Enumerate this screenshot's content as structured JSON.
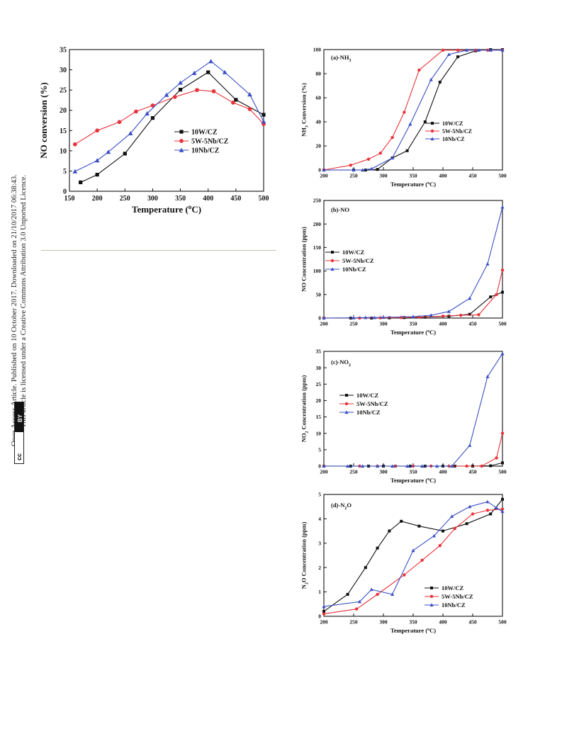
{
  "sidebar": {
    "line1": "Open Access Article. Published on 10 October 2017. Downloaded on 21/10/2017 06:38:43.",
    "line2": "This article is licensed under a Creative Commons Attribution 3.0 Unported Licence.",
    "cc_label": "BY",
    "cc_symbol": "cc"
  },
  "colors": {
    "10W/CZ": "#111111",
    "5W-5Nb/CZ": "#e8333a",
    "10Nb/CZ": "#3a4fc4"
  },
  "chart_data": [
    {
      "id": "no_conversion",
      "type": "line",
      "title": "",
      "xlabel": "Temperature (°C)",
      "ylabel": "NO conversion (%)",
      "xlim": [
        150,
        500
      ],
      "ylim": [
        0,
        35
      ],
      "xticks": [
        150,
        200,
        250,
        300,
        350,
        400,
        450,
        500
      ],
      "yticks": [
        0,
        5,
        10,
        15,
        20,
        25,
        30,
        35
      ],
      "legend_position": "center-right",
      "series": [
        {
          "name": "10W/CZ",
          "marker": "square",
          "x": [
            170,
            200,
            250,
            300,
            350,
            400,
            450,
            500
          ],
          "y": [
            2.2,
            4.1,
            9.3,
            18.1,
            25.1,
            29.4,
            22.6,
            18.9
          ]
        },
        {
          "name": "5W-5Nb/CZ",
          "marker": "circle",
          "x": [
            160,
            200,
            240,
            270,
            300,
            340,
            380,
            410,
            445,
            475,
            500
          ],
          "y": [
            11.6,
            15.0,
            17.1,
            19.7,
            21.2,
            23.3,
            25.0,
            24.7,
            21.9,
            20.3,
            16.6
          ]
        },
        {
          "name": "10Nb/CZ",
          "marker": "triangle",
          "x": [
            160,
            200,
            220,
            260,
            290,
            325,
            350,
            375,
            405,
            430,
            475,
            500
          ],
          "y": [
            4.9,
            7.6,
            9.7,
            14.3,
            19.2,
            23.8,
            26.8,
            29.2,
            32.1,
            29.4,
            23.9,
            17.2
          ]
        }
      ]
    },
    {
      "id": "nh3",
      "type": "line",
      "title": "(a)-NH3",
      "xlabel": "Temperature (°C)",
      "ylabel": "NH3 Conversion (%)",
      "xlim": [
        200,
        500
      ],
      "ylim": [
        0,
        100
      ],
      "xticks": [
        200,
        250,
        300,
        350,
        400,
        450,
        500
      ],
      "yticks": [
        0,
        20,
        40,
        60,
        80,
        100
      ],
      "legend_position": "center-right",
      "series": [
        {
          "name": "10W/CZ",
          "marker": "square",
          "x": [
            200,
            250,
            270,
            290,
            315,
            340,
            370,
            395,
            425,
            455,
            480,
            500
          ],
          "y": [
            0,
            0,
            0,
            0.5,
            10,
            16,
            40,
            73,
            94,
            99,
            100,
            100
          ]
        },
        {
          "name": "5W-5Nb/CZ",
          "marker": "circle",
          "x": [
            200,
            245,
            275,
            295,
            315,
            335,
            360,
            400,
            425,
            455,
            475,
            500
          ],
          "y": [
            0,
            4,
            9,
            14,
            27,
            48,
            83,
            99.5,
            99.5,
            99.5,
            99.5,
            99.5
          ]
        },
        {
          "name": "10Nb/CZ",
          "marker": "triangle",
          "x": [
            200,
            250,
            265,
            280,
            315,
            345,
            380,
            410,
            440,
            460,
            480,
            500
          ],
          "y": [
            0,
            0,
            0,
            1,
            10,
            38,
            75,
            96,
            99.5,
            99.5,
            99.5,
            99.5
          ]
        }
      ]
    },
    {
      "id": "no",
      "type": "line",
      "title": "(b)-NO",
      "xlabel": "Temperature (°C)",
      "ylabel": "NO Concentration (ppm)",
      "xlim": [
        200,
        500
      ],
      "ylim": [
        0,
        250
      ],
      "xticks": [
        200,
        250,
        300,
        350,
        400,
        450,
        500
      ],
      "yticks": [
        0,
        50,
        100,
        150,
        200,
        250
      ],
      "legend_position": "center-left",
      "series": [
        {
          "name": "10W/CZ",
          "marker": "square",
          "x": [
            200,
            245,
            280,
            310,
            335,
            370,
            410,
            445,
            480,
            500
          ],
          "y": [
            0,
            0,
            0,
            0.5,
            1,
            2,
            4,
            8,
            45,
            55
          ]
        },
        {
          "name": "5W-5Nb/CZ",
          "marker": "circle",
          "x": [
            200,
            260,
            295,
            330,
            360,
            400,
            430,
            460,
            490,
            500
          ],
          "y": [
            0,
            0,
            0.5,
            1,
            2,
            4,
            6,
            7,
            50,
            102
          ]
        },
        {
          "name": "10Nb/CZ",
          "marker": "triangle",
          "x": [
            200,
            250,
            270,
            285,
            300,
            350,
            380,
            410,
            445,
            475,
            500
          ],
          "y": [
            0,
            0.5,
            1,
            1,
            1.5,
            3,
            6,
            14,
            42,
            115,
            236
          ]
        }
      ]
    },
    {
      "id": "no2",
      "type": "line",
      "title": "(c)-NO2",
      "xlabel": "Temperature (°C)",
      "ylabel": "NO2 Concentration (ppm)",
      "xlim": [
        200,
        500
      ],
      "ylim": [
        0,
        35
      ],
      "xticks": [
        200,
        250,
        300,
        350,
        400,
        450,
        500
      ],
      "yticks": [
        0,
        5,
        10,
        15,
        20,
        25,
        30,
        35
      ],
      "legend_position": "center-left",
      "series": [
        {
          "name": "10W/CZ",
          "marker": "square",
          "x": [
            200,
            245,
            275,
            300,
            320,
            345,
            370,
            400,
            420,
            450,
            480,
            500
          ],
          "y": [
            0,
            0,
            0,
            0,
            0,
            0,
            0,
            0,
            0,
            0,
            0.1,
            1
          ]
        },
        {
          "name": "5W-5Nb/CZ",
          "marker": "circle",
          "x": [
            200,
            260,
            290,
            320,
            350,
            380,
            410,
            440,
            465,
            490,
            500
          ],
          "y": [
            0,
            0,
            0,
            0,
            0,
            0,
            0,
            0,
            0,
            2.5,
            10
          ]
        },
        {
          "name": "10Nb/CZ",
          "marker": "triangle",
          "x": [
            200,
            240,
            265,
            290,
            315,
            340,
            365,
            390,
            415,
            445,
            475,
            500
          ],
          "y": [
            0,
            0,
            0,
            0,
            0,
            0,
            0,
            0,
            0,
            6.3,
            27.3,
            34.3
          ]
        }
      ]
    },
    {
      "id": "n2o",
      "type": "line",
      "title": "(d)-N2O",
      "xlabel": "Temperature (°C)",
      "ylabel": "N2O Concentration (ppm)",
      "xlim": [
        200,
        500
      ],
      "ylim": [
        0,
        5
      ],
      "xticks": [
        200,
        250,
        300,
        350,
        400,
        450,
        500
      ],
      "yticks": [
        0,
        1,
        2,
        3,
        4,
        5
      ],
      "legend_position": "bottom-right",
      "series": [
        {
          "name": "10W/CZ",
          "marker": "square",
          "x": [
            200,
            240,
            270,
            290,
            310,
            330,
            360,
            400,
            440,
            480,
            500
          ],
          "y": [
            0.2,
            0.9,
            2.0,
            2.8,
            3.5,
            3.9,
            3.7,
            3.5,
            3.8,
            4.2,
            4.8
          ]
        },
        {
          "name": "5W-5Nb/CZ",
          "marker": "circle",
          "x": [
            200,
            255,
            290,
            335,
            365,
            395,
            420,
            450,
            475,
            500
          ],
          "y": [
            0.1,
            0.3,
            0.9,
            1.7,
            2.3,
            2.9,
            3.6,
            4.2,
            4.35,
            4.4
          ]
        },
        {
          "name": "10Nb/CZ",
          "marker": "triangle",
          "x": [
            200,
            260,
            280,
            315,
            350,
            385,
            415,
            445,
            475,
            490,
            500
          ],
          "y": [
            0.4,
            0.6,
            1.1,
            0.9,
            2.7,
            3.3,
            4.1,
            4.5,
            4.7,
            4.45,
            4.3
          ]
        }
      ]
    }
  ]
}
